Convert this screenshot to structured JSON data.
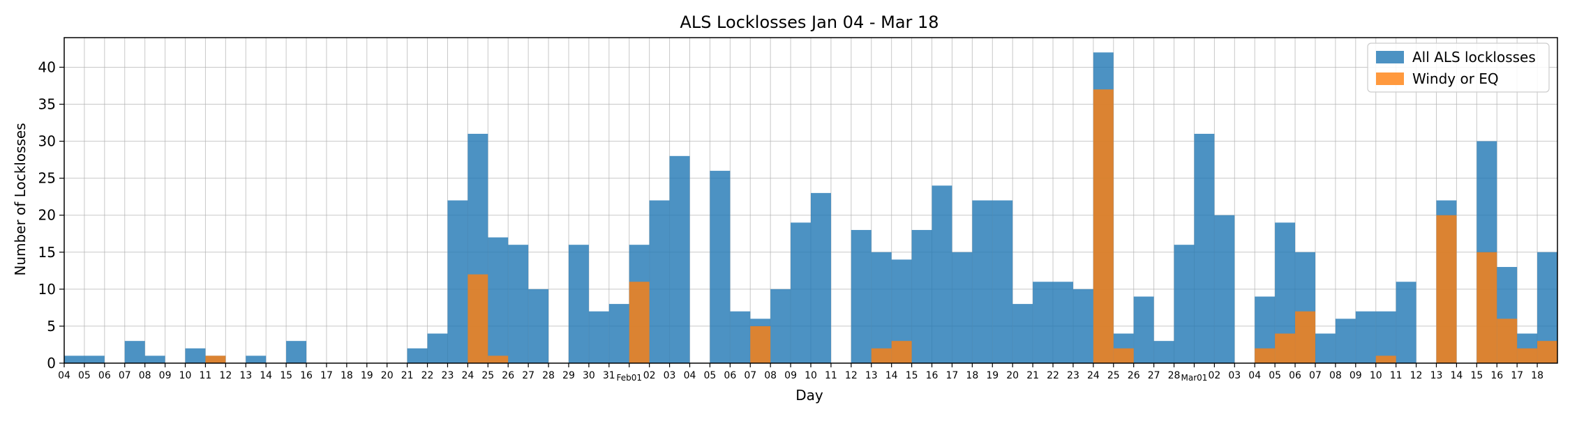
{
  "chart_data": {
    "type": "bar",
    "title": "ALS Locklosses Jan 04 - Mar 18",
    "xlabel": "Day",
    "ylabel": "Number of Locklosses",
    "ylim": [
      0,
      44
    ],
    "yticks": [
      0,
      5,
      10,
      15,
      20,
      25,
      30,
      35,
      40
    ],
    "grid": true,
    "legend_position": "top-right",
    "categories": [
      "04",
      "05",
      "06",
      "07",
      "08",
      "09",
      "10",
      "11",
      "12",
      "13",
      "14",
      "15",
      "16",
      "17",
      "18",
      "19",
      "20",
      "21",
      "22",
      "23",
      "24",
      "25",
      "26",
      "27",
      "28",
      "29",
      "30",
      "31",
      "Feb01",
      "02",
      "03",
      "04",
      "05",
      "06",
      "07",
      "08",
      "09",
      "10",
      "11",
      "12",
      "13",
      "14",
      "15",
      "16",
      "17",
      "18",
      "19",
      "20",
      "21",
      "22",
      "23",
      "24",
      "25",
      "26",
      "27",
      "28",
      "Mar01",
      "02",
      "03",
      "04",
      "05",
      "06",
      "07",
      "08",
      "09",
      "10",
      "11",
      "12",
      "13",
      "14",
      "15",
      "16",
      "17",
      "18"
    ],
    "series": [
      {
        "name": "All ALS locklosses",
        "color": "#1f77b4",
        "values": [
          1,
          1,
          0,
          3,
          1,
          0,
          2,
          1,
          0,
          1,
          0,
          3,
          0,
          0,
          0,
          0,
          0,
          2,
          4,
          22,
          31,
          17,
          16,
          10,
          0,
          16,
          7,
          8,
          16,
          22,
          28,
          0,
          26,
          7,
          6,
          10,
          19,
          23,
          0,
          18,
          15,
          14,
          18,
          24,
          15,
          22,
          22,
          8,
          11,
          11,
          10,
          42,
          4,
          9,
          3,
          16,
          31,
          20,
          0,
          9,
          19,
          15,
          4,
          6,
          7,
          7,
          11,
          0,
          22,
          0,
          30,
          13,
          4,
          15
        ]
      },
      {
        "name": "Windy or EQ",
        "color": "#ff7f0e",
        "values": [
          0,
          0,
          0,
          0,
          0,
          0,
          0,
          1,
          0,
          0,
          0,
          0,
          0,
          0,
          0,
          0,
          0,
          0,
          0,
          0,
          12,
          1,
          0,
          0,
          0,
          0,
          0,
          0,
          11,
          0,
          0,
          0,
          0,
          0,
          5,
          0,
          0,
          0,
          0,
          0,
          2,
          3,
          0,
          0,
          0,
          0,
          0,
          0,
          0,
          0,
          0,
          37,
          2,
          0,
          0,
          0,
          0,
          0,
          0,
          2,
          4,
          7,
          0,
          0,
          0,
          1,
          0,
          0,
          20,
          0,
          15,
          6,
          2,
          3
        ]
      }
    ]
  }
}
